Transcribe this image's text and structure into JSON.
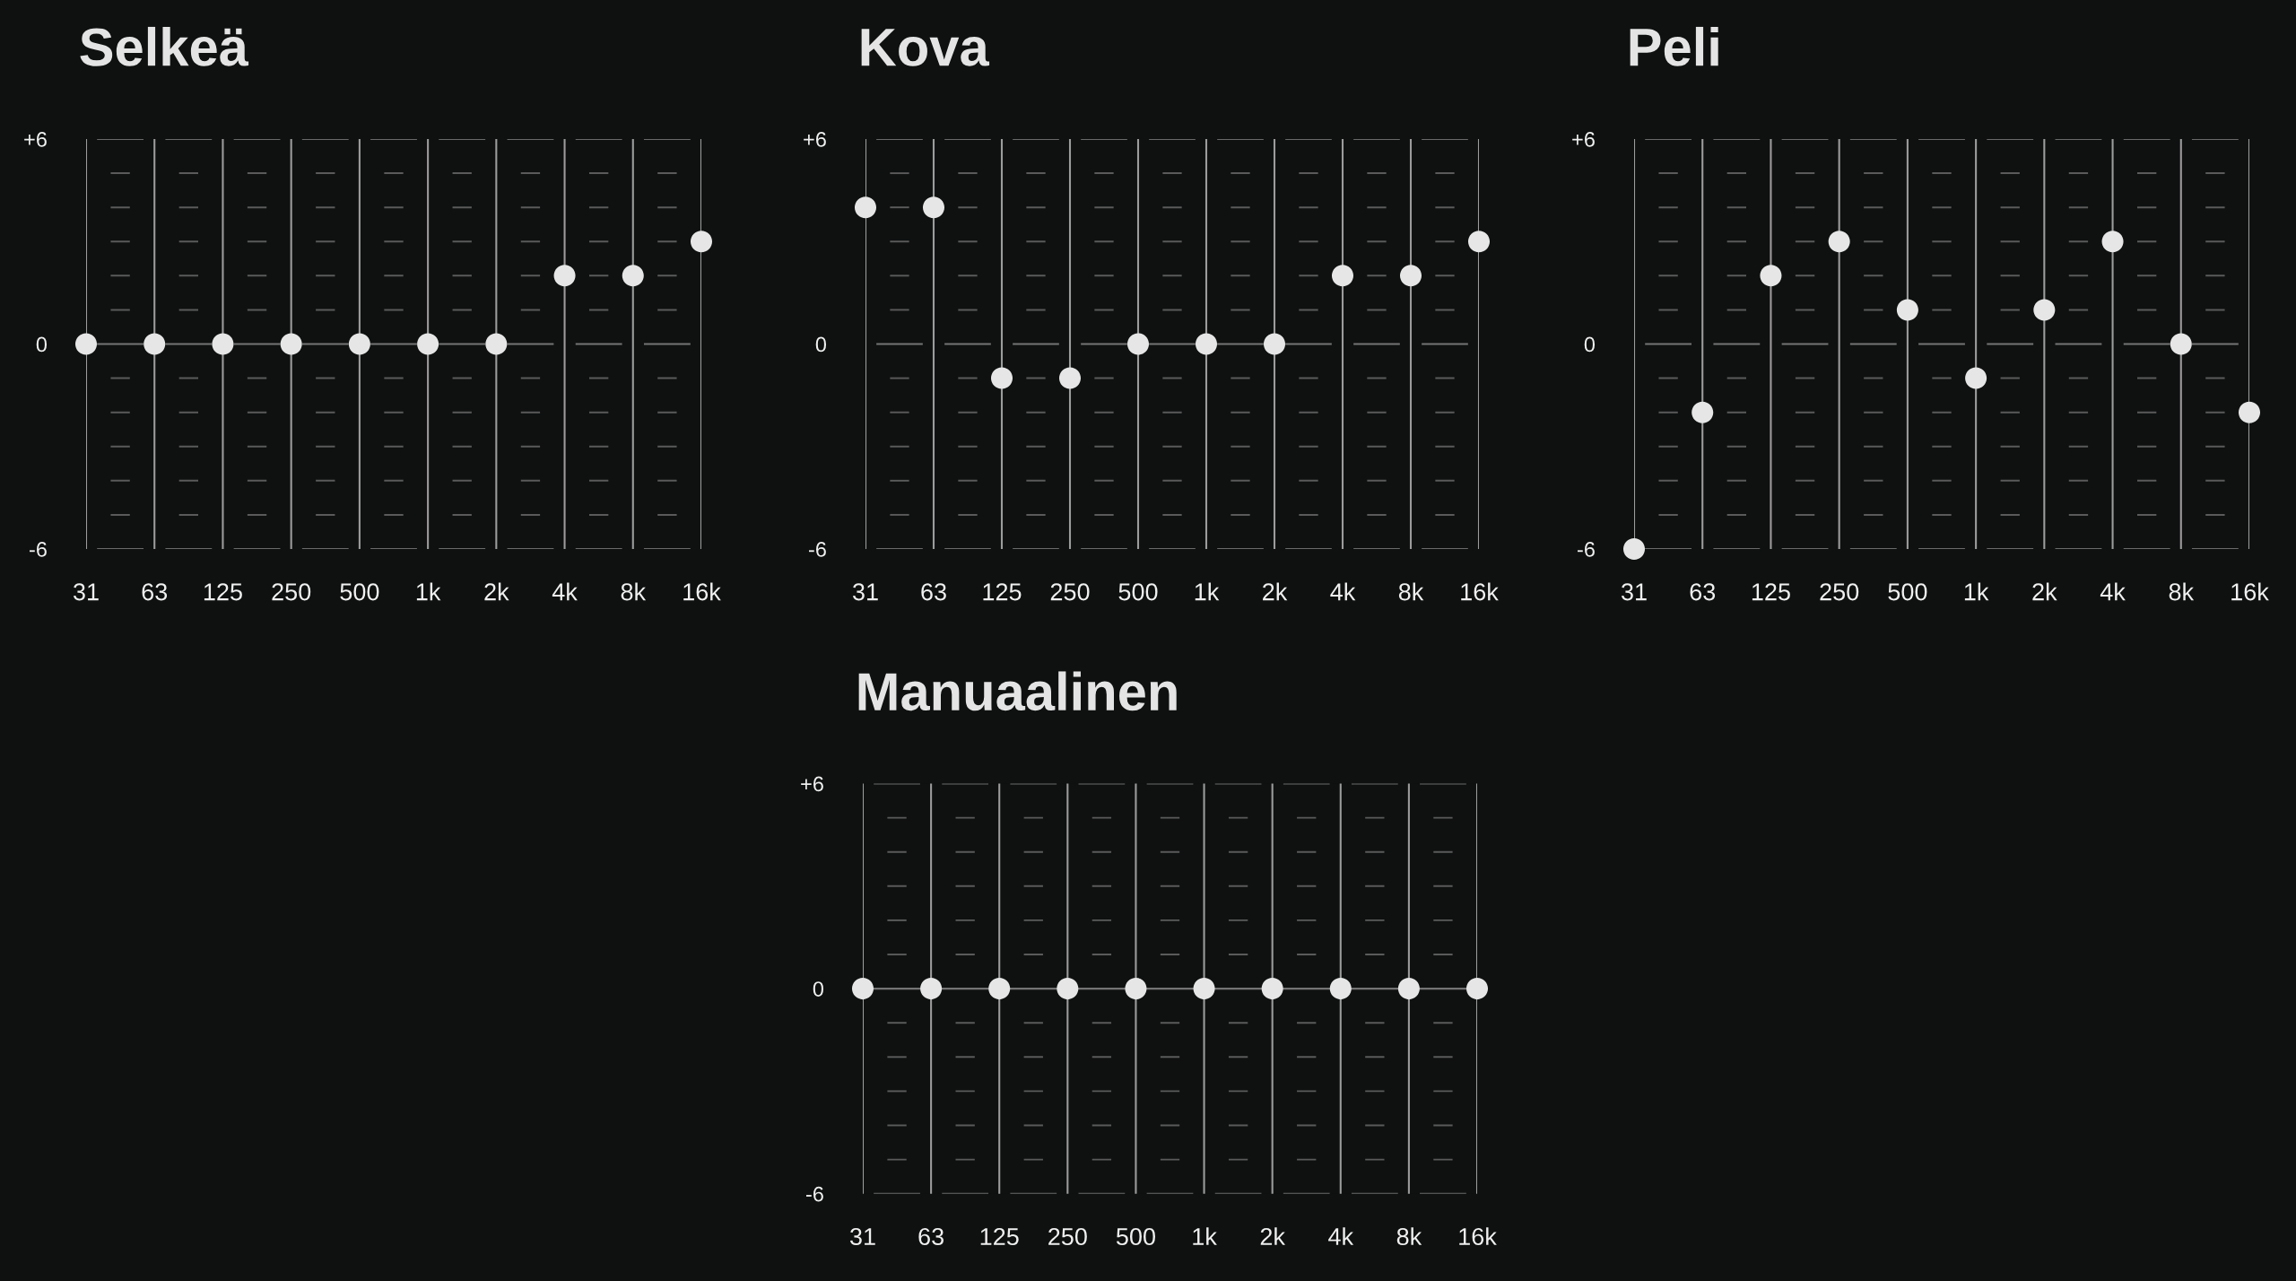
{
  "chart_data": [
    {
      "type": "scatter",
      "title": "Selkeä",
      "categories": [
        "31",
        "63",
        "125",
        "250",
        "500",
        "1k",
        "2k",
        "4k",
        "8k",
        "16k"
      ],
      "values": [
        0,
        0,
        0,
        0,
        0,
        0,
        0,
        2,
        2,
        3
      ],
      "color": "#e6e6e6",
      "marker": "circle",
      "ylim": [
        -6,
        6
      ],
      "yticks": [
        -6,
        {
          "value": -5,
          "label": null
        },
        {
          "value": -4,
          "label": null
        },
        {
          "value": -3,
          "label": null
        },
        {
          "value": -2,
          "label": null
        },
        {
          "value": -1,
          "label": null
        },
        0,
        {
          "value": 1,
          "label": null
        },
        {
          "value": 2,
          "label": null
        },
        {
          "value": 3,
          "label": null
        },
        {
          "value": 4,
          "label": null
        },
        {
          "value": 5,
          "label": null
        },
        {
          "value": 6,
          "label": "+6"
        }
      ],
      "grid": true,
      "ref_lines": [
        {
          "axis": "y",
          "value": 0,
          "color": "#747474",
          "line_style": "dashed"
        }
      ]
    },
    {
      "type": "scatter",
      "title": "Kova",
      "categories": [
        "31",
        "63",
        "125",
        "250",
        "500",
        "1k",
        "2k",
        "4k",
        "8k",
        "16k"
      ],
      "values": [
        4,
        4,
        -1,
        -1,
        0,
        0,
        0,
        2,
        2,
        3
      ],
      "color": "#e6e6e6",
      "marker": "circle",
      "ylim": [
        -6,
        6
      ],
      "yticks": [
        -6,
        {
          "value": -5,
          "label": null
        },
        {
          "value": -4,
          "label": null
        },
        {
          "value": -3,
          "label": null
        },
        {
          "value": -2,
          "label": null
        },
        {
          "value": -1,
          "label": null
        },
        0,
        {
          "value": 1,
          "label": null
        },
        {
          "value": 2,
          "label": null
        },
        {
          "value": 3,
          "label": null
        },
        {
          "value": 4,
          "label": null
        },
        {
          "value": 5,
          "label": null
        },
        {
          "value": 6,
          "label": "+6"
        }
      ],
      "grid": true,
      "ref_lines": [
        {
          "axis": "y",
          "value": 0,
          "color": "#747474",
          "line_style": "dashed"
        }
      ]
    },
    {
      "type": "scatter",
      "title": "Peli",
      "categories": [
        "31",
        "63",
        "125",
        "250",
        "500",
        "1k",
        "2k",
        "4k",
        "8k",
        "16k"
      ],
      "values": [
        -6,
        -2,
        2,
        3,
        1,
        -1,
        1,
        3,
        0,
        -2
      ],
      "color": "#e6e6e6",
      "marker": "circle",
      "ylim": [
        -6,
        6
      ],
      "yticks": [
        -6,
        {
          "value": -5,
          "label": null
        },
        {
          "value": -4,
          "label": null
        },
        {
          "value": -3,
          "label": null
        },
        {
          "value": -2,
          "label": null
        },
        {
          "value": -1,
          "label": null
        },
        0,
        {
          "value": 1,
          "label": null
        },
        {
          "value": 2,
          "label": null
        },
        {
          "value": 3,
          "label": null
        },
        {
          "value": 4,
          "label": null
        },
        {
          "value": 5,
          "label": null
        },
        {
          "value": 6,
          "label": "+6"
        }
      ],
      "grid": true,
      "ref_lines": [
        {
          "axis": "y",
          "value": 0,
          "color": "#747474",
          "line_style": "dashed"
        }
      ]
    },
    {
      "type": "scatter",
      "title": "Manuaalinen",
      "categories": [
        "31",
        "63",
        "125",
        "250",
        "500",
        "1k",
        "2k",
        "4k",
        "8k",
        "16k"
      ],
      "values": [
        0,
        0,
        0,
        0,
        0,
        0,
        0,
        0,
        0,
        0
      ],
      "color": "#e6e6e6",
      "marker": "circle",
      "ylim": [
        -6,
        6
      ],
      "yticks": [
        -6,
        {
          "value": -5,
          "label": null
        },
        {
          "value": -4,
          "label": null
        },
        {
          "value": -3,
          "label": null
        },
        {
          "value": -2,
          "label": null
        },
        {
          "value": -1,
          "label": null
        },
        0,
        {
          "value": 1,
          "label": null
        },
        {
          "value": 2,
          "label": null
        },
        {
          "value": 3,
          "label": null
        },
        {
          "value": 4,
          "label": null
        },
        {
          "value": 5,
          "label": null
        },
        {
          "value": 6,
          "label": "+6"
        }
      ],
      "grid": true,
      "ref_lines": [
        {
          "axis": "y",
          "value": 0,
          "color": "#747474",
          "line_style": "solid"
        }
      ]
    }
  ]
}
